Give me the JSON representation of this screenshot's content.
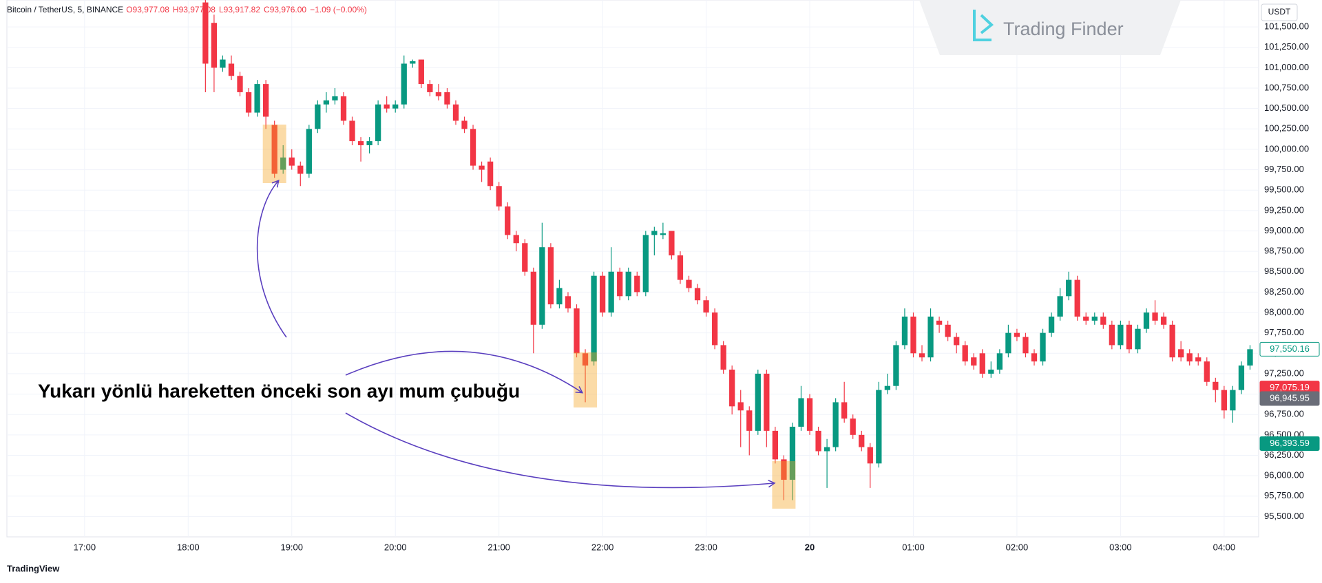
{
  "chart_data": {
    "type": "candlestick",
    "symbol": "Bitcoin / TetherUS, 5, BINANCE",
    "ohlc_header": [
      "O93,977.08",
      "H93,977.08",
      "L93,917.82",
      "C93,976.00",
      "−1.09 (−0.00%)"
    ],
    "currency": "USDT",
    "logo": "Trading Finder",
    "footer": "TradingView",
    "annotation": "Yukarı yönlü hareketten önceki son ayı mum çubuğu",
    "colors": {
      "up": "#089981",
      "down": "#f23645"
    },
    "candles": [
      [
        101800,
        102000,
        100700,
        101050
      ],
      [
        101550,
        101650,
        100700,
        101000
      ],
      [
        101000,
        101150,
        100950,
        101100
      ],
      [
        101050,
        101150,
        100850,
        100900
      ],
      [
        100900,
        100950,
        100650,
        100700
      ],
      [
        100700,
        100750,
        100400,
        100450
      ],
      [
        100450,
        100850,
        100400,
        100800
      ],
      [
        100800,
        100850,
        100250,
        100400
      ],
      [
        100300,
        100350,
        99650,
        99700
      ],
      [
        99750,
        100050,
        99700,
        99900
      ],
      [
        99900,
        100000,
        99750,
        99800
      ],
      [
        99800,
        99850,
        99550,
        99700
      ],
      [
        99700,
        100300,
        99650,
        100250
      ],
      [
        100250,
        100600,
        100200,
        100550
      ],
      [
        100550,
        100700,
        100450,
        100600
      ],
      [
        100600,
        100750,
        100550,
        100650
      ],
      [
        100650,
        100700,
        100300,
        100350
      ],
      [
        100350,
        100400,
        100050,
        100100
      ],
      [
        100100,
        100150,
        99850,
        100050
      ],
      [
        100050,
        100150,
        99950,
        100100
      ],
      [
        100100,
        100600,
        100050,
        100550
      ],
      [
        100550,
        100650,
        100450,
        100500
      ],
      [
        100500,
        100600,
        100450,
        100550
      ],
      [
        100550,
        101150,
        100500,
        101050
      ],
      [
        101050,
        101100,
        101000,
        101080
      ],
      [
        101100,
        101100,
        100750,
        100800
      ],
      [
        100800,
        100850,
        100650,
        100700
      ],
      [
        100700,
        100800,
        100600,
        100650
      ],
      [
        100700,
        100750,
        100500,
        100550
      ],
      [
        100550,
        100600,
        100300,
        100350
      ],
      [
        100350,
        100400,
        100200,
        100250
      ],
      [
        100250,
        100300,
        99750,
        99800
      ],
      [
        99800,
        99850,
        99600,
        99750
      ],
      [
        99850,
        99900,
        99500,
        99550
      ],
      [
        99550,
        99600,
        99250,
        99300
      ],
      [
        99300,
        99350,
        98900,
        98950
      ],
      [
        98950,
        99000,
        98750,
        98850
      ],
      [
        98850,
        98900,
        98450,
        98500
      ],
      [
        98500,
        98550,
        97500,
        97850
      ],
      [
        97850,
        99100,
        97800,
        98800
      ],
      [
        98800,
        98850,
        98050,
        98100
      ],
      [
        98100,
        98400,
        98050,
        98300
      ],
      [
        98200,
        98250,
        98000,
        98050
      ],
      [
        98050,
        98100,
        97450,
        97500
      ],
      [
        97500,
        97550,
        96900,
        97350
      ],
      [
        97400,
        98500,
        97350,
        98450
      ],
      [
        98450,
        98500,
        97950,
        98000
      ],
      [
        98000,
        98800,
        97950,
        98500
      ],
      [
        98500,
        98550,
        98150,
        98200
      ],
      [
        98200,
        98550,
        98150,
        98500
      ],
      [
        98450,
        98500,
        98200,
        98250
      ],
      [
        98250,
        99000,
        98200,
        98950
      ],
      [
        98950,
        99050,
        98700,
        99000
      ],
      [
        98950,
        99100,
        98900,
        98970
      ],
      [
        99000,
        99000,
        98650,
        98700
      ],
      [
        98700,
        98750,
        98350,
        98400
      ],
      [
        98400,
        98450,
        98250,
        98300
      ],
      [
        98300,
        98350,
        98100,
        98150
      ],
      [
        98150,
        98200,
        97950,
        98000
      ],
      [
        98000,
        98050,
        97550,
        97600
      ],
      [
        97600,
        97650,
        97250,
        97300
      ],
      [
        97300,
        97350,
        96750,
        96850
      ],
      [
        96900,
        97050,
        96350,
        96800
      ],
      [
        96800,
        96850,
        96250,
        96550
      ],
      [
        96550,
        97300,
        96500,
        97250
      ],
      [
        97250,
        97300,
        96350,
        96550
      ],
      [
        96550,
        96600,
        96150,
        96200
      ],
      [
        96200,
        96250,
        95700,
        95950
      ],
      [
        95950,
        96650,
        95700,
        96600
      ],
      [
        96600,
        97100,
        96550,
        96950
      ],
      [
        96950,
        97000,
        96500,
        96550
      ],
      [
        96550,
        96600,
        96250,
        96300
      ],
      [
        96300,
        96450,
        95850,
        96350
      ],
      [
        96350,
        96950,
        96300,
        96900
      ],
      [
        96900,
        97150,
        96650,
        96700
      ],
      [
        96700,
        96750,
        96450,
        96500
      ],
      [
        96500,
        96550,
        96300,
        96350
      ],
      [
        96350,
        96400,
        95850,
        96150
      ],
      [
        96150,
        97150,
        96100,
        97050
      ],
      [
        97050,
        97250,
        97000,
        97100
      ],
      [
        97100,
        97650,
        97050,
        97600
      ],
      [
        97600,
        98050,
        97550,
        97950
      ],
      [
        97950,
        98000,
        97450,
        97500
      ],
      [
        97500,
        97600,
        97400,
        97450
      ],
      [
        97450,
        98050,
        97400,
        97950
      ],
      [
        97900,
        97950,
        97750,
        97850
      ],
      [
        97850,
        97900,
        97650,
        97700
      ],
      [
        97700,
        97750,
        97500,
        97600
      ],
      [
        97600,
        97650,
        97350,
        97400
      ],
      [
        97450,
        97500,
        97300,
        97350
      ],
      [
        97500,
        97550,
        97200,
        97250
      ],
      [
        97250,
        97400,
        97200,
        97300
      ],
      [
        97300,
        97550,
        97250,
        97500
      ],
      [
        97500,
        97850,
        97450,
        97750
      ],
      [
        97750,
        97800,
        97650,
        97700
      ],
      [
        97700,
        97750,
        97450,
        97500
      ],
      [
        97500,
        97550,
        97350,
        97400
      ],
      [
        97400,
        97800,
        97350,
        97750
      ],
      [
        97750,
        98000,
        97700,
        97950
      ],
      [
        97950,
        98300,
        97900,
        98200
      ],
      [
        98200,
        98500,
        98150,
        98400
      ],
      [
        98400,
        98450,
        97900,
        97950
      ],
      [
        97950,
        98000,
        97850,
        97900
      ],
      [
        97900,
        98000,
        97850,
        97950
      ],
      [
        97950,
        98000,
        97800,
        97850
      ],
      [
        97850,
        97900,
        97550,
        97600
      ],
      [
        97600,
        97900,
        97550,
        97850
      ],
      [
        97850,
        97900,
        97500,
        97550
      ],
      [
        97550,
        97850,
        97500,
        97800
      ],
      [
        97800,
        98050,
        97750,
        98000
      ],
      [
        98000,
        98150,
        97850,
        97900
      ],
      [
        97950,
        98000,
        97800,
        97850
      ],
      [
        97850,
        97900,
        97400,
        97450
      ],
      [
        97550,
        97650,
        97400,
        97450
      ],
      [
        97500,
        97550,
        97350,
        97400
      ],
      [
        97450,
        97500,
        97350,
        97400
      ],
      [
        97400,
        97450,
        97100,
        97150
      ],
      [
        97150,
        97200,
        96900,
        97050
      ],
      [
        97050,
        97100,
        96700,
        96800
      ],
      [
        96800,
        97100,
        96650,
        97050
      ],
      [
        97050,
        97400,
        97000,
        97350
      ],
      [
        97350,
        97600,
        97300,
        97550
      ]
    ],
    "xlim": [
      -23,
      122
    ],
    "xticks": [
      {
        "value": -14,
        "label": "17:00"
      },
      {
        "value": -2,
        "label": "18:00"
      },
      {
        "value": 10,
        "label": "19:00"
      },
      {
        "value": 22,
        "label": "20:00"
      },
      {
        "value": 34,
        "label": "21:00"
      },
      {
        "value": 46,
        "label": "22:00"
      },
      {
        "value": 58,
        "label": "23:00"
      },
      {
        "value": 70,
        "label": "20"
      },
      {
        "value": 82,
        "label": "01:00"
      },
      {
        "value": 94,
        "label": "02:00"
      },
      {
        "value": 106,
        "label": "03:00"
      },
      {
        "value": 118,
        "label": "04:00"
      }
    ],
    "ylim": [
      95250,
      101830
    ],
    "yticks": [
      {
        "value": 95500,
        "label": "95,500.00"
      },
      {
        "value": 95750,
        "label": "95,750.00"
      },
      {
        "value": 96000,
        "label": "96,000.00"
      },
      {
        "value": 96250,
        "label": "96,250.00"
      },
      {
        "value": 96500,
        "label": "96,500.00"
      },
      {
        "value": 96750,
        "label": "96,750.00"
      },
      {
        "value": 97000,
        "label": "97,000.00"
      },
      {
        "value": 97250,
        "label": "97,250.00"
      },
      {
        "value": 97500,
        "label": "97,500.00"
      },
      {
        "value": 97750,
        "label": "97,750.00"
      },
      {
        "value": 98000,
        "label": "98,000.00"
      },
      {
        "value": 98250,
        "label": "98,250.00"
      },
      {
        "value": 98500,
        "label": "98,500.00"
      },
      {
        "value": 98750,
        "label": "98,750.00"
      },
      {
        "value": 99000,
        "label": "99,000.00"
      },
      {
        "value": 99250,
        "label": "99,250.00"
      },
      {
        "value": 99500,
        "label": "99,500.00"
      },
      {
        "value": 99750,
        "label": "99,750.00"
      },
      {
        "value": 100000,
        "label": "100,000.00"
      },
      {
        "value": 100250,
        "label": "100,250.00"
      },
      {
        "value": 100500,
        "label": "100,500.00"
      },
      {
        "value": 100750,
        "label": "100,750.00"
      },
      {
        "value": 101000,
        "label": "101,000.00"
      },
      {
        "value": 101250,
        "label": "101,250.00"
      },
      {
        "value": 101500,
        "label": "101,500.00"
      }
    ],
    "price_labels": [
      {
        "value": 97550.16,
        "label": "97,550.16",
        "color": "#089981",
        "outline": true
      },
      {
        "value": 97075.19,
        "label": "97,075.19",
        "color": "#f23645",
        "outline": false
      },
      {
        "value": 96945.95,
        "label": "96,945.95",
        "color": "#6a6d78",
        "outline": false
      },
      {
        "value": 96393.59,
        "label": "96,393.59",
        "color": "#089981",
        "outline": false
      }
    ]
  }
}
